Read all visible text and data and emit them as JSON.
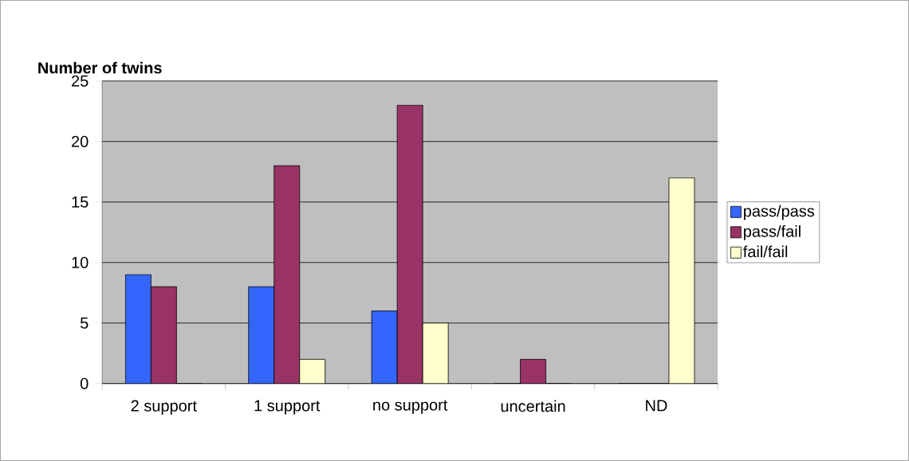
{
  "chart_data": {
    "type": "bar",
    "title": "Number of twins",
    "categories": [
      "2 support",
      "1 support",
      "no support",
      "uncertain",
      "ND"
    ],
    "series": [
      {
        "name": "pass/pass",
        "color": "#3366ff",
        "values": [
          9,
          8,
          6,
          0,
          0
        ]
      },
      {
        "name": "pass/fail",
        "color": "#993366",
        "values": [
          8,
          18,
          23,
          2,
          0
        ]
      },
      {
        "name": "fail/fail",
        "color": "#ffffcc",
        "values": [
          0,
          2,
          5,
          0,
          17
        ]
      }
    ],
    "ylim": [
      0,
      25
    ],
    "yticks": [
      0,
      5,
      10,
      15,
      20,
      25
    ],
    "grid": "y",
    "legend": "right"
  }
}
